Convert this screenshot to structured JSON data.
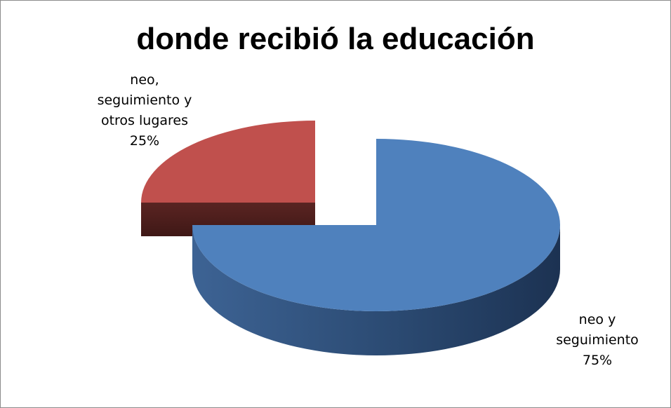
{
  "chart_data": {
    "type": "pie",
    "style": "3d-exploded",
    "title": "donde recibió la educación",
    "legend": "none",
    "slices": [
      {
        "name": "neo y seguimiento",
        "value": 75,
        "label_lines": [
          "neo y",
          "seguimiento",
          "75%"
        ],
        "color": "#4F81BD",
        "side_color": "#2c4a72"
      },
      {
        "name": "neo, seguimiento y otros lugares",
        "value": 25,
        "label_lines": [
          "neo,",
          "seguimiento y",
          "otros lugares",
          "25%"
        ],
        "color": "#C0504D",
        "side_color": "#4e1f1d"
      }
    ]
  }
}
